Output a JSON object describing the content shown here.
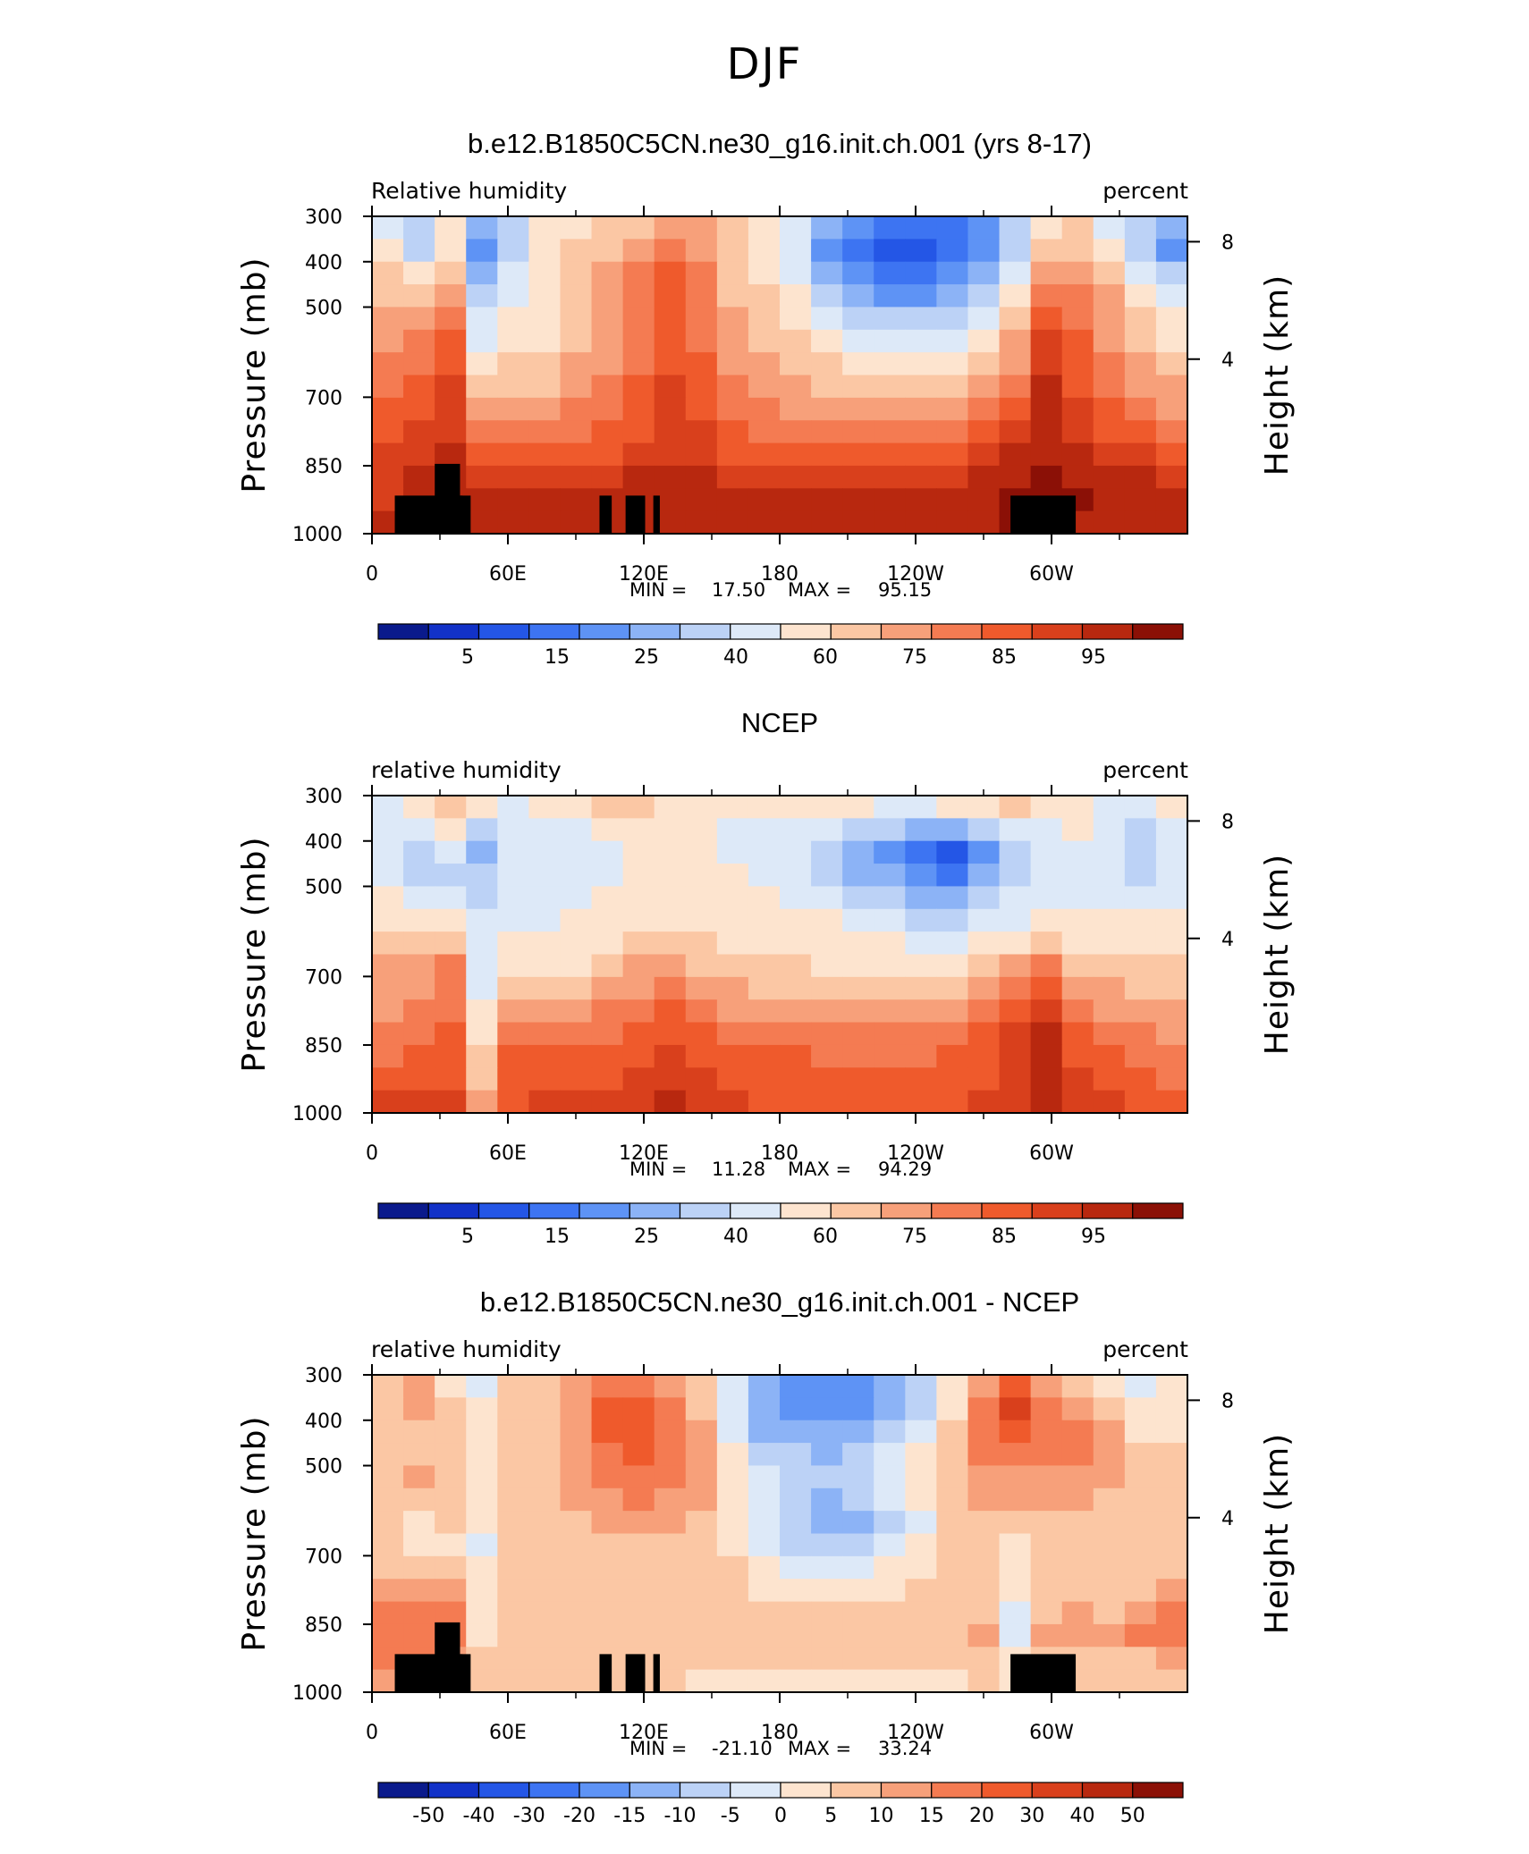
{
  "main_title": "DJF",
  "colors": {
    "abs": [
      "#0a1a8c",
      "#1232c8",
      "#2456e6",
      "#3d74f2",
      "#5e93f5",
      "#8cb3f6",
      "#bcd2f6",
      "#dde9f8",
      "#fde4cf",
      "#fbc7a4",
      "#f7a07a",
      "#f47b52",
      "#ef5a2c",
      "#d9401c",
      "#b8280f",
      "#8b1006"
    ],
    "diff": [
      "#0a1a8c",
      "#1232c8",
      "#2456e6",
      "#3d74f2",
      "#5e93f5",
      "#8cb3f6",
      "#bcd2f6",
      "#dde9f8",
      "#fde4cf",
      "#fbc7a4",
      "#f7a07a",
      "#f47b52",
      "#ef5a2c",
      "#d9401c",
      "#b8280f",
      "#8b1006"
    ],
    "land": "#000000"
  },
  "chart_data": [
    {
      "type": "heatmap",
      "title": "b.e12.B1850C5CN.ne30_g16.init.ch.001 (yrs 8-17)",
      "left_label": "Relative  humidity",
      "right_label": "percent",
      "ylabel": "Pressure  (mb)",
      "y2label": "Height  (km)",
      "xlim": [
        0,
        360
      ],
      "ylim": [
        1000,
        300
      ],
      "x_ticks": [
        {
          "v": 0,
          "t": "0"
        },
        {
          "v": 60,
          "t": "60E"
        },
        {
          "v": 120,
          "t": "120E"
        },
        {
          "v": 180,
          "t": "180"
        },
        {
          "v": 240,
          "t": "120W"
        },
        {
          "v": 300,
          "t": "60W"
        }
      ],
      "y_ticks": [
        "300",
        "400",
        "500",
        "700",
        "850",
        "1000"
      ],
      "y2_ticks": [
        "8",
        "4"
      ],
      "min_label": "MIN =",
      "min_value": "17.50",
      "max_label": "MAX =",
      "max_value": "95.15",
      "colorbar_labels": [
        "5",
        "15",
        "25",
        "40",
        "60",
        "75",
        "85",
        "95"
      ],
      "field": [
        [
          7,
          6,
          8,
          5,
          6,
          8,
          8,
          9,
          9,
          10,
          10,
          9,
          8,
          7,
          5,
          4,
          3,
          3,
          3,
          4,
          6,
          8,
          9,
          7,
          6,
          5
        ],
        [
          8,
          6,
          8,
          4,
          6,
          8,
          9,
          9,
          10,
          11,
          10,
          9,
          8,
          7,
          4,
          3,
          2,
          2,
          3,
          4,
          6,
          9,
          9,
          8,
          6,
          4
        ],
        [
          9,
          8,
          9,
          5,
          7,
          8,
          9,
          10,
          11,
          12,
          11,
          9,
          8,
          7,
          5,
          4,
          3,
          3,
          4,
          5,
          7,
          10,
          10,
          9,
          7,
          6
        ],
        [
          9,
          9,
          10,
          6,
          7,
          8,
          9,
          10,
          11,
          12,
          11,
          9,
          9,
          8,
          6,
          5,
          4,
          4,
          5,
          6,
          8,
          11,
          11,
          10,
          8,
          7
        ],
        [
          10,
          10,
          11,
          7,
          8,
          8,
          9,
          10,
          11,
          12,
          11,
          10,
          9,
          8,
          7,
          6,
          6,
          6,
          6,
          7,
          9,
          12,
          11,
          10,
          9,
          8
        ],
        [
          10,
          11,
          12,
          7,
          8,
          8,
          9,
          10,
          11,
          12,
          11,
          10,
          9,
          9,
          8,
          7,
          7,
          7,
          7,
          8,
          10,
          13,
          12,
          10,
          9,
          8
        ],
        [
          11,
          11,
          12,
          8,
          9,
          9,
          10,
          10,
          11,
          12,
          12,
          10,
          10,
          9,
          9,
          8,
          8,
          8,
          8,
          9,
          10,
          13,
          12,
          11,
          10,
          9
        ],
        [
          11,
          12,
          13,
          9,
          9,
          9,
          10,
          11,
          12,
          13,
          12,
          11,
          10,
          10,
          9,
          9,
          9,
          9,
          9,
          10,
          11,
          14,
          12,
          11,
          10,
          10
        ],
        [
          12,
          12,
          13,
          10,
          10,
          10,
          11,
          11,
          12,
          13,
          12,
          11,
          11,
          10,
          10,
          10,
          10,
          10,
          10,
          11,
          12,
          14,
          13,
          12,
          11,
          10
        ],
        [
          12,
          13,
          13,
          11,
          11,
          11,
          11,
          12,
          12,
          13,
          13,
          12,
          11,
          11,
          11,
          11,
          11,
          11,
          11,
          12,
          13,
          14,
          13,
          12,
          12,
          11
        ],
        [
          13,
          13,
          14,
          12,
          12,
          12,
          12,
          12,
          13,
          13,
          13,
          12,
          12,
          12,
          12,
          12,
          12,
          12,
          12,
          13,
          14,
          14,
          14,
          13,
          13,
          12
        ],
        [
          13,
          14,
          14,
          13,
          13,
          13,
          13,
          13,
          14,
          14,
          14,
          13,
          13,
          13,
          13,
          13,
          13,
          13,
          13,
          14,
          14,
          15,
          14,
          14,
          14,
          13
        ],
        [
          13,
          14,
          14,
          14,
          14,
          14,
          14,
          14,
          14,
          14,
          14,
          14,
          14,
          14,
          14,
          14,
          14,
          14,
          14,
          14,
          15,
          15,
          15,
          14,
          14,
          14
        ],
        [
          14,
          14,
          14,
          14,
          14,
          14,
          14,
          14,
          14,
          14,
          14,
          14,
          14,
          14,
          14,
          14,
          14,
          14,
          14,
          14,
          15,
          15,
          14,
          14,
          14,
          14
        ]
      ],
      "land": true
    },
    {
      "type": "heatmap",
      "title": "NCEP",
      "left_label": "relative  humidity",
      "right_label": "percent",
      "ylabel": "Pressure  (mb)",
      "y2label": "Height  (km)",
      "xlim": [
        0,
        360
      ],
      "ylim": [
        1000,
        300
      ],
      "x_ticks": [
        {
          "v": 0,
          "t": "0"
        },
        {
          "v": 60,
          "t": "60E"
        },
        {
          "v": 120,
          "t": "120E"
        },
        {
          "v": 180,
          "t": "180"
        },
        {
          "v": 240,
          "t": "120W"
        },
        {
          "v": 300,
          "t": "60W"
        }
      ],
      "y_ticks": [
        "300",
        "400",
        "500",
        "700",
        "850",
        "1000"
      ],
      "y2_ticks": [
        "8",
        "4"
      ],
      "min_label": "MIN =",
      "min_value": "11.28",
      "max_label": "MAX =",
      "max_value": "94.29",
      "colorbar_labels": [
        "5",
        "15",
        "25",
        "40",
        "60",
        "75",
        "85",
        "95"
      ],
      "field": [
        [
          7,
          8,
          9,
          8,
          7,
          8,
          8,
          9,
          9,
          8,
          8,
          8,
          8,
          8,
          8,
          8,
          7,
          7,
          8,
          8,
          9,
          8,
          8,
          7,
          7,
          8
        ],
        [
          7,
          7,
          8,
          6,
          7,
          7,
          7,
          8,
          8,
          8,
          8,
          7,
          7,
          7,
          7,
          6,
          6,
          5,
          5,
          6,
          7,
          7,
          8,
          7,
          6,
          7
        ],
        [
          7,
          6,
          7,
          5,
          7,
          7,
          7,
          7,
          8,
          8,
          8,
          7,
          7,
          7,
          6,
          5,
          4,
          3,
          2,
          4,
          6,
          7,
          7,
          7,
          6,
          7
        ],
        [
          7,
          6,
          6,
          6,
          7,
          7,
          7,
          7,
          8,
          8,
          8,
          8,
          7,
          7,
          6,
          5,
          5,
          4,
          3,
          5,
          6,
          7,
          7,
          7,
          6,
          7
        ],
        [
          8,
          7,
          7,
          6,
          7,
          7,
          7,
          8,
          8,
          8,
          8,
          8,
          8,
          7,
          7,
          6,
          6,
          5,
          5,
          6,
          7,
          7,
          7,
          7,
          7,
          7
        ],
        [
          8,
          8,
          8,
          7,
          7,
          7,
          8,
          8,
          8,
          8,
          8,
          8,
          8,
          8,
          8,
          7,
          7,
          6,
          6,
          7,
          7,
          8,
          8,
          8,
          8,
          8
        ],
        [
          9,
          9,
          9,
          7,
          8,
          8,
          8,
          8,
          9,
          9,
          9,
          8,
          8,
          8,
          8,
          8,
          8,
          7,
          7,
          8,
          8,
          9,
          8,
          8,
          8,
          8
        ],
        [
          10,
          10,
          11,
          7,
          8,
          8,
          8,
          9,
          10,
          10,
          9,
          9,
          9,
          9,
          8,
          8,
          8,
          8,
          8,
          9,
          10,
          11,
          9,
          9,
          9,
          9
        ],
        [
          10,
          10,
          11,
          7,
          9,
          9,
          9,
          10,
          10,
          11,
          10,
          10,
          9,
          9,
          9,
          9,
          9,
          9,
          9,
          10,
          11,
          12,
          10,
          10,
          9,
          9
        ],
        [
          10,
          11,
          11,
          8,
          10,
          10,
          10,
          11,
          11,
          12,
          11,
          10,
          10,
          10,
          10,
          10,
          10,
          10,
          10,
          11,
          12,
          13,
          11,
          10,
          10,
          10
        ],
        [
          11,
          11,
          12,
          8,
          11,
          11,
          11,
          11,
          12,
          12,
          12,
          11,
          11,
          11,
          11,
          11,
          11,
          11,
          11,
          12,
          13,
          14,
          12,
          11,
          11,
          10
        ],
        [
          11,
          12,
          12,
          9,
          12,
          12,
          12,
          12,
          12,
          13,
          12,
          12,
          12,
          12,
          11,
          11,
          11,
          11,
          12,
          12,
          13,
          14,
          12,
          12,
          11,
          11
        ],
        [
          12,
          12,
          12,
          9,
          12,
          12,
          12,
          12,
          13,
          13,
          13,
          12,
          12,
          12,
          12,
          12,
          12,
          12,
          12,
          12,
          13,
          14,
          13,
          12,
          12,
          11
        ],
        [
          13,
          13,
          13,
          10,
          12,
          13,
          13,
          13,
          13,
          14,
          13,
          13,
          12,
          12,
          12,
          12,
          12,
          12,
          12,
          13,
          13,
          14,
          13,
          13,
          12,
          12
        ]
      ],
      "land": false
    },
    {
      "type": "heatmap",
      "title": "b.e12.B1850C5CN.ne30_g16.init.ch.001 - NCEP",
      "left_label": "relative  humidity",
      "right_label": "percent",
      "ylabel": "Pressure  (mb)",
      "y2label": "Height  (km)",
      "xlim": [
        0,
        360
      ],
      "ylim": [
        1000,
        300
      ],
      "x_ticks": [
        {
          "v": 0,
          "t": "0"
        },
        {
          "v": 60,
          "t": "60E"
        },
        {
          "v": 120,
          "t": "120E"
        },
        {
          "v": 180,
          "t": "180"
        },
        {
          "v": 240,
          "t": "120W"
        },
        {
          "v": 300,
          "t": "60W"
        }
      ],
      "y_ticks": [
        "300",
        "400",
        "500",
        "700",
        "850",
        "1000"
      ],
      "y2_ticks": [
        "8",
        "4"
      ],
      "min_label": "MIN =",
      "min_value": "-21.10",
      "max_label": "MAX =",
      "max_value": "33.24",
      "colorbar_labels": [
        "-50",
        "-40",
        "-30",
        "-20",
        "-15",
        "-10",
        "-5",
        "0",
        "5",
        "10",
        "15",
        "20",
        "30",
        "40",
        "50"
      ],
      "field": [
        [
          9,
          10,
          8,
          7,
          9,
          9,
          10,
          11,
          11,
          10,
          9,
          7,
          5,
          4,
          4,
          4,
          5,
          6,
          8,
          10,
          12,
          10,
          9,
          8,
          7,
          8
        ],
        [
          9,
          10,
          9,
          8,
          9,
          9,
          10,
          12,
          12,
          11,
          9,
          7,
          5,
          4,
          4,
          4,
          5,
          6,
          8,
          11,
          13,
          11,
          10,
          9,
          8,
          8
        ],
        [
          9,
          9,
          9,
          8,
          9,
          9,
          10,
          12,
          12,
          11,
          10,
          7,
          5,
          5,
          5,
          5,
          6,
          7,
          9,
          11,
          12,
          11,
          11,
          10,
          8,
          8
        ],
        [
          9,
          9,
          9,
          8,
          9,
          9,
          10,
          11,
          12,
          11,
          10,
          8,
          6,
          6,
          5,
          6,
          7,
          8,
          9,
          11,
          11,
          11,
          11,
          10,
          9,
          9
        ],
        [
          9,
          10,
          9,
          8,
          9,
          9,
          10,
          11,
          11,
          11,
          10,
          8,
          7,
          6,
          6,
          6,
          7,
          8,
          9,
          10,
          10,
          10,
          10,
          10,
          9,
          9
        ],
        [
          9,
          9,
          9,
          8,
          9,
          9,
          10,
          10,
          11,
          10,
          10,
          8,
          7,
          6,
          5,
          6,
          7,
          8,
          9,
          10,
          10,
          10,
          10,
          9,
          9,
          9
        ],
        [
          9,
          8,
          9,
          8,
          9,
          9,
          9,
          10,
          10,
          10,
          9,
          8,
          7,
          6,
          5,
          5,
          6,
          7,
          9,
          9,
          9,
          9,
          9,
          9,
          9,
          9
        ],
        [
          9,
          8,
          8,
          7,
          9,
          9,
          9,
          9,
          9,
          9,
          9,
          8,
          7,
          6,
          6,
          6,
          7,
          8,
          9,
          9,
          8,
          9,
          9,
          9,
          9,
          9
        ],
        [
          9,
          9,
          9,
          8,
          9,
          9,
          9,
          9,
          9,
          9,
          9,
          9,
          8,
          7,
          7,
          7,
          8,
          8,
          9,
          9,
          8,
          9,
          9,
          9,
          9,
          9
        ],
        [
          10,
          10,
          10,
          8,
          9,
          9,
          9,
          9,
          9,
          9,
          9,
          9,
          8,
          8,
          8,
          8,
          8,
          9,
          9,
          9,
          8,
          9,
          9,
          9,
          9,
          10
        ],
        [
          11,
          11,
          11,
          8,
          9,
          9,
          9,
          9,
          9,
          9,
          9,
          9,
          9,
          9,
          9,
          9,
          9,
          9,
          9,
          9,
          7,
          9,
          10,
          9,
          10,
          11
        ],
        [
          11,
          11,
          11,
          8,
          9,
          9,
          9,
          9,
          9,
          9,
          9,
          9,
          9,
          9,
          9,
          9,
          9,
          9,
          9,
          10,
          7,
          10,
          10,
          10,
          11,
          11
        ],
        [
          11,
          11,
          10,
          9,
          9,
          9,
          9,
          9,
          9,
          9,
          9,
          9,
          9,
          9,
          9,
          9,
          9,
          9,
          9,
          9,
          8,
          9,
          9,
          9,
          9,
          10
        ],
        [
          10,
          10,
          10,
          9,
          9,
          9,
          9,
          9,
          9,
          9,
          8,
          8,
          8,
          8,
          8,
          8,
          8,
          8,
          8,
          9,
          8,
          9,
          9,
          9,
          9,
          9
        ]
      ],
      "land": true
    }
  ]
}
